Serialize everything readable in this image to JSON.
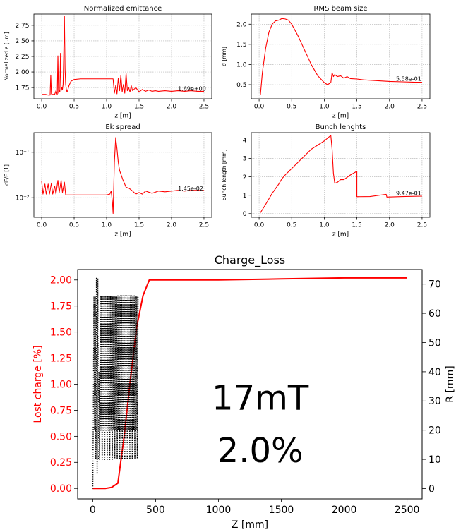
{
  "chart_data": [
    {
      "type": "line",
      "title": "Normalized emittance",
      "xlabel": "z [m]",
      "ylabel": "Normalized ε [μm]",
      "xlim": [
        -0.12,
        2.62
      ],
      "ylim": [
        1.57,
        2.93
      ],
      "xticks": [
        0.0,
        0.5,
        1.0,
        1.5,
        2.0,
        2.5
      ],
      "xtick_labels": [
        "0.0",
        "0.5",
        "1.0",
        "1.5",
        "2.0",
        "2.5"
      ],
      "yticks": [
        1.75,
        2.0,
        2.25,
        2.5,
        2.75
      ],
      "ytick_labels": [
        "1.75",
        "2.00",
        "2.25",
        "2.50",
        "2.75"
      ],
      "grid": true,
      "annotation": {
        "text": "1.69e+00",
        "x": 2.1,
        "y": 1.7
      },
      "series": [
        {
          "color": "#ff0000",
          "x": [
            0.0,
            0.06,
            0.1,
            0.13,
            0.14,
            0.15,
            0.16,
            0.2,
            0.22,
            0.24,
            0.25,
            0.26,
            0.27,
            0.28,
            0.29,
            0.3,
            0.31,
            0.32,
            0.33,
            0.34,
            0.35,
            0.36,
            0.37,
            0.38,
            0.39,
            0.4,
            0.42,
            0.45,
            0.5,
            0.6,
            0.8,
            1.0,
            1.1,
            1.12,
            1.14,
            1.16,
            1.18,
            1.2,
            1.22,
            1.24,
            1.26,
            1.28,
            1.3,
            1.32,
            1.34,
            1.36,
            1.38,
            1.4,
            1.45,
            1.5,
            1.55,
            1.6,
            1.65,
            1.7,
            1.75,
            1.8,
            1.9,
            2.0,
            2.1,
            2.2,
            2.3,
            2.4,
            2.5
          ],
          "y": [
            1.64,
            1.64,
            1.63,
            1.63,
            1.95,
            1.65,
            1.64,
            1.64,
            1.7,
            1.64,
            2.26,
            1.66,
            1.7,
            1.68,
            2.3,
            1.7,
            1.75,
            1.72,
            1.8,
            2.3,
            2.9,
            2.05,
            1.8,
            1.72,
            1.68,
            1.7,
            1.78,
            1.85,
            1.88,
            1.89,
            1.89,
            1.89,
            1.89,
            1.66,
            1.78,
            1.65,
            1.9,
            1.7,
            1.95,
            1.68,
            1.8,
            1.66,
            1.98,
            1.7,
            1.75,
            1.68,
            1.78,
            1.7,
            1.75,
            1.68,
            1.72,
            1.69,
            1.71,
            1.69,
            1.7,
            1.69,
            1.7,
            1.69,
            1.7,
            1.69,
            1.7,
            1.69,
            1.69
          ]
        }
      ]
    },
    {
      "type": "line",
      "title": "RMS beam size",
      "xlabel": "z [m]",
      "ylabel": "σ [mm]",
      "xlim": [
        -0.12,
        2.62
      ],
      "ylim": [
        0.15,
        2.25
      ],
      "xticks": [
        0.0,
        0.5,
        1.0,
        1.5,
        2.0,
        2.5
      ],
      "xtick_labels": [
        "0.0",
        "0.5",
        "1.0",
        "1.5",
        "2.0",
        "2.5"
      ],
      "yticks": [
        0.5,
        1.0,
        1.5,
        2.0
      ],
      "ytick_labels": [
        "0.5",
        "1.0",
        "1.5",
        "2.0"
      ],
      "grid": true,
      "annotation": {
        "text": "5.58e-01",
        "x": 2.1,
        "y": 0.6
      },
      "series": [
        {
          "color": "#ff0000",
          "x": [
            0.02,
            0.05,
            0.1,
            0.15,
            0.2,
            0.25,
            0.3,
            0.35,
            0.4,
            0.45,
            0.5,
            0.6,
            0.7,
            0.8,
            0.9,
            1.0,
            1.05,
            1.1,
            1.12,
            1.14,
            1.16,
            1.2,
            1.25,
            1.3,
            1.35,
            1.4,
            1.5,
            1.6,
            1.8,
            2.0,
            2.2,
            2.4,
            2.5
          ],
          "y": [
            0.25,
            0.8,
            1.4,
            1.8,
            2.0,
            2.08,
            2.1,
            2.14,
            2.13,
            2.1,
            2.0,
            1.7,
            1.35,
            1.0,
            0.72,
            0.55,
            0.5,
            0.55,
            0.8,
            0.7,
            0.75,
            0.7,
            0.72,
            0.66,
            0.7,
            0.65,
            0.64,
            0.62,
            0.6,
            0.58,
            0.57,
            0.56,
            0.56
          ]
        }
      ]
    },
    {
      "type": "line",
      "title": "Ek spread",
      "xlabel": "z [m]",
      "ylabel": "dE/E [1]",
      "xlim": [
        -0.12,
        2.62
      ],
      "ylim": [
        0.0037,
        0.27
      ],
      "yscale": "log",
      "xticks": [
        0.0,
        0.5,
        1.0,
        1.5,
        2.0,
        2.5
      ],
      "xtick_labels": [
        "0.0",
        "0.5",
        "1.0",
        "1.5",
        "2.0",
        "2.5"
      ],
      "yticks": [
        0.01,
        0.1
      ],
      "ytick_labels": [
        "10⁻²",
        "10⁻¹"
      ],
      "grid": true,
      "annotation": {
        "text": "1.45e-02",
        "x": 2.1,
        "y": 0.0145
      },
      "series": [
        {
          "color": "#ff0000",
          "x": [
            0.0,
            0.02,
            0.05,
            0.07,
            0.1,
            0.12,
            0.15,
            0.17,
            0.2,
            0.22,
            0.25,
            0.27,
            0.3,
            0.32,
            0.35,
            0.37,
            0.5,
            0.8,
            1.0,
            1.05,
            1.07,
            1.09,
            1.1,
            1.12,
            1.14,
            1.16,
            1.18,
            1.2,
            1.25,
            1.3,
            1.35,
            1.4,
            1.45,
            1.5,
            1.55,
            1.6,
            1.7,
            1.8,
            1.9,
            2.0,
            2.1,
            2.2,
            2.3,
            2.4,
            2.5
          ],
          "y": [
            0.023,
            0.012,
            0.02,
            0.012,
            0.02,
            0.012,
            0.021,
            0.012,
            0.018,
            0.012,
            0.024,
            0.013,
            0.024,
            0.013,
            0.022,
            0.0115,
            0.0115,
            0.0115,
            0.0115,
            0.012,
            0.014,
            0.008,
            0.0045,
            0.06,
            0.21,
            0.12,
            0.06,
            0.04,
            0.025,
            0.017,
            0.016,
            0.014,
            0.012,
            0.013,
            0.012,
            0.014,
            0.0125,
            0.014,
            0.0135,
            0.014,
            0.0145,
            0.014,
            0.0145,
            0.0145,
            0.0145
          ]
        }
      ]
    },
    {
      "type": "line",
      "title": "Bunch lenghts",
      "xlabel": "z [m]",
      "ylabel": "Bunch length [mm]",
      "xlim": [
        -0.12,
        2.62
      ],
      "ylim": [
        -0.2,
        4.4
      ],
      "xticks": [
        0.0,
        0.5,
        1.0,
        1.5,
        2.0,
        2.5
      ],
      "xtick_labels": [
        "0.0",
        "0.5",
        "1.0",
        "1.5",
        "2.0",
        "2.5"
      ],
      "yticks": [
        0,
        1,
        2,
        3,
        4
      ],
      "ytick_labels": [
        "0",
        "1",
        "2",
        "3",
        "4"
      ],
      "grid": true,
      "annotation": {
        "text": "9.47e-01",
        "x": 2.1,
        "y": 1.0
      },
      "series": [
        {
          "color": "#ff0000",
          "x": [
            0.02,
            0.1,
            0.2,
            0.3,
            0.35,
            0.4,
            0.6,
            0.8,
            1.0,
            1.1,
            1.12,
            1.14,
            1.16,
            1.2,
            1.25,
            1.3,
            1.4,
            1.5,
            1.5,
            1.7,
            1.95,
            1.96,
            2.2,
            2.5
          ],
          "y": [
            0.05,
            0.5,
            1.1,
            1.6,
            1.9,
            2.1,
            2.8,
            3.5,
            3.95,
            4.25,
            3.5,
            2.2,
            1.65,
            1.7,
            1.85,
            1.85,
            2.1,
            2.3,
            0.92,
            0.93,
            1.05,
            0.9,
            0.93,
            0.95
          ]
        }
      ]
    },
    {
      "type": "line",
      "title": "Charge_Loss",
      "xlabel": "Z [mm]",
      "ylabel": "Lost charge [%]",
      "ylabel_right": "R [mm]",
      "xlim": [
        -120,
        2620
      ],
      "ylim": [
        -0.1,
        2.1
      ],
      "ylim_right": [
        -3.5,
        75
      ],
      "xticks": [
        0,
        500,
        1000,
        1500,
        2000,
        2500
      ],
      "xtick_labels": [
        "0",
        "500",
        "1000",
        "1500",
        "2000",
        "2500"
      ],
      "yticks": [
        0.0,
        0.25,
        0.5,
        0.75,
        1.0,
        1.25,
        1.5,
        1.75,
        2.0
      ],
      "ytick_labels": [
        "0.00",
        "0.25",
        "0.50",
        "0.75",
        "1.00",
        "1.25",
        "1.50",
        "1.75",
        "2.00"
      ],
      "yticks_right": [
        0,
        10,
        20,
        30,
        40,
        50,
        60,
        70
      ],
      "ytick_labels_right": [
        "0",
        "10",
        "20",
        "30",
        "40",
        "50",
        "60",
        "70"
      ],
      "colors": {
        "left_axis": "#ff0000",
        "right_axis": "#000000"
      },
      "big_text": [
        "17mT",
        "2.0%"
      ],
      "series": [
        {
          "color": "#ff0000",
          "axis": "left",
          "x": [
            0,
            100,
            150,
            200,
            250,
            300,
            350,
            400,
            450,
            1000,
            1500,
            2000,
            2500
          ],
          "y": [
            0.0,
            0.0,
            0.01,
            0.05,
            0.5,
            1.05,
            1.55,
            1.85,
            2.0,
            2.0,
            2.01,
            2.02,
            2.02
          ]
        },
        {
          "color": "#000000",
          "axis": "right",
          "style": "dotted",
          "x": [
            0,
            2,
            5,
            10,
            15,
            20,
            25,
            30,
            35,
            40,
            45,
            50,
            55,
            60,
            65,
            70,
            75,
            80,
            85,
            90,
            95,
            100,
            105,
            110,
            115,
            120,
            125,
            130,
            135,
            140,
            145,
            150,
            155,
            160,
            165,
            170,
            175,
            180,
            185,
            190,
            195,
            200,
            205,
            210,
            215,
            220,
            225,
            230,
            235,
            240,
            245,
            250,
            255,
            260,
            265,
            270,
            275,
            280,
            285,
            290,
            295,
            300,
            305,
            310,
            315,
            320,
            325,
            330,
            335,
            340,
            345,
            350,
            355,
            360
          ],
          "y": [
            0,
            10,
            25,
            66,
            20,
            66,
            10,
            72,
            5,
            72,
            10,
            40,
            10,
            66,
            20,
            66,
            10,
            66,
            20,
            66,
            10,
            66,
            20,
            66,
            10,
            66,
            20,
            66,
            10,
            66,
            20,
            66,
            10,
            66,
            20,
            66,
            10,
            66,
            20,
            66,
            10,
            66,
            20,
            66,
            10,
            66,
            20,
            66,
            10,
            66,
            20,
            66,
            10,
            66,
            20,
            66,
            10,
            66,
            20,
            66,
            10,
            66,
            20,
            66,
            10,
            66,
            20,
            66,
            10,
            66,
            20,
            66,
            10,
            66
          ]
        }
      ]
    }
  ]
}
